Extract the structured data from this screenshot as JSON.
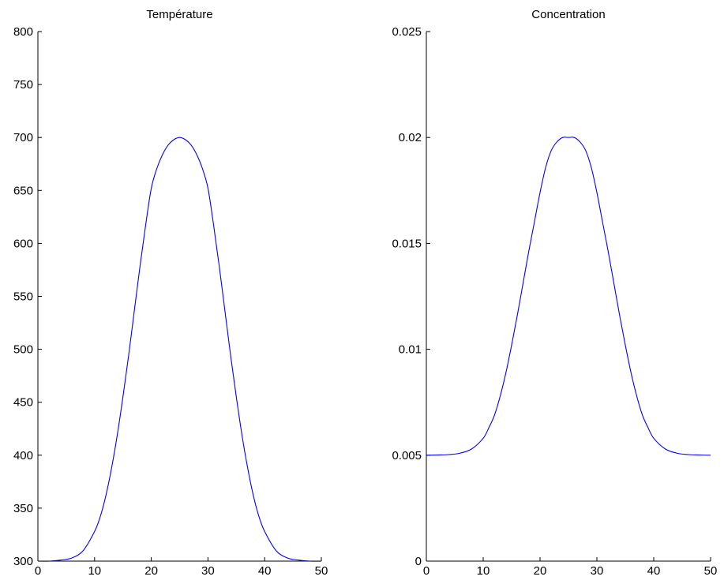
{
  "chart_data": [
    {
      "type": "line",
      "title": "Température",
      "xlabel": "",
      "ylabel": "",
      "xlim": [
        0,
        50
      ],
      "ylim": [
        300,
        800
      ],
      "xticks": [
        "0",
        "10",
        "20",
        "30",
        "40",
        "50"
      ],
      "yticks": [
        "300",
        "350",
        "400",
        "450",
        "500",
        "550",
        "600",
        "650",
        "700",
        "750",
        "800"
      ],
      "grid": false,
      "color": "#0000ff",
      "x": [
        0,
        2,
        4,
        6,
        8,
        10,
        11,
        12,
        13,
        14,
        15,
        16,
        17,
        18,
        19,
        20,
        21,
        22,
        23,
        24,
        25,
        26,
        27,
        28,
        29,
        30,
        31,
        32,
        33,
        34,
        35,
        36,
        37,
        38,
        39,
        40,
        42,
        44,
        46,
        48,
        50
      ],
      "y": [
        300,
        300,
        301,
        303,
        310,
        328,
        342,
        362,
        388,
        419,
        455,
        494,
        536,
        578,
        617,
        652,
        671,
        684,
        693,
        698,
        700,
        698,
        693,
        684,
        671,
        652,
        617,
        578,
        536,
        494,
        455,
        419,
        388,
        362,
        342,
        328,
        310,
        303,
        301,
        300,
        300
      ]
    },
    {
      "type": "line",
      "title": "Concentration",
      "xlabel": "",
      "ylabel": "",
      "xlim": [
        0,
        50
      ],
      "ylim": [
        0,
        0.025
      ],
      "xticks": [
        "0",
        "10",
        "20",
        "30",
        "40",
        "50"
      ],
      "yticks": [
        "0",
        "0.005",
        "0.01",
        "0.015",
        "0.02",
        "0.025"
      ],
      "grid": false,
      "color": "#0000ff",
      "x": [
        0,
        2,
        4,
        6,
        8,
        10,
        11,
        12,
        13,
        14,
        15,
        16,
        17,
        18,
        19,
        20,
        21,
        22,
        23,
        24,
        25,
        26,
        27,
        28,
        29,
        30,
        31,
        32,
        33,
        34,
        35,
        36,
        37,
        38,
        39,
        40,
        42,
        44,
        46,
        48,
        50
      ],
      "y": [
        0.005,
        0.00501,
        0.00503,
        0.0051,
        0.0053,
        0.0058,
        0.0063,
        0.0069,
        0.0078,
        0.0089,
        0.0102,
        0.0116,
        0.0131,
        0.0146,
        0.016,
        0.0174,
        0.0186,
        0.0194,
        0.0198,
        0.02,
        0.02,
        0.02,
        0.0198,
        0.0194,
        0.0186,
        0.0174,
        0.016,
        0.0146,
        0.0131,
        0.0116,
        0.0102,
        0.0089,
        0.0078,
        0.0069,
        0.0063,
        0.0058,
        0.0053,
        0.0051,
        0.00503,
        0.00501,
        0.005
      ]
    }
  ]
}
